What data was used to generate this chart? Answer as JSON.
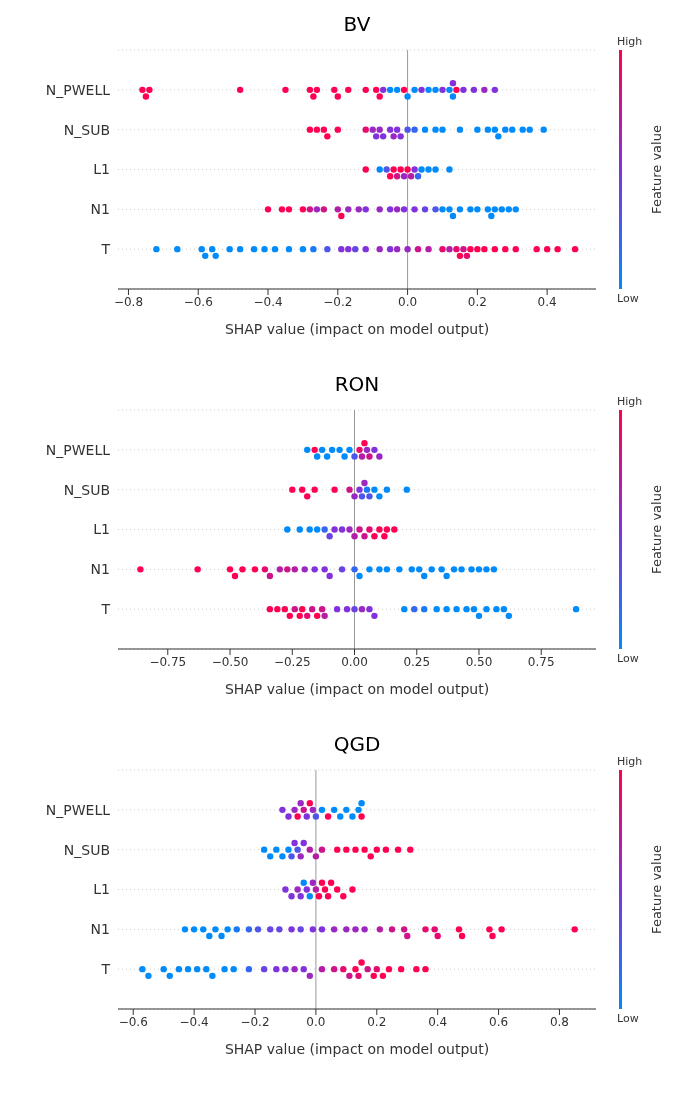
{
  "chart_data": [
    {
      "type": "scatter",
      "title": "BV",
      "orientation": "horizontal",
      "xlabel": "SHAP value (impact on model output)",
      "clabel": "Feature value",
      "annotations": [
        "High",
        "Low"
      ],
      "categories": [
        "N_PWELL",
        "N_SUB",
        "L1",
        "N1",
        "T"
      ],
      "xlim": [
        -0.83,
        0.54
      ],
      "xticks": [
        {
          "value": -0.8,
          "label": "−0.8"
        },
        {
          "value": -0.6,
          "label": "−0.6"
        },
        {
          "value": -0.4,
          "label": "−0.4"
        },
        {
          "value": -0.2,
          "label": "−0.2"
        },
        {
          "value": 0,
          "label": "0.0"
        },
        {
          "value": 0.2,
          "label": "0.2"
        },
        {
          "value": 0.4,
          "label": "0.4"
        }
      ],
      "grid": "y",
      "ref_lines": [
        {
          "axis": "x",
          "value": 0,
          "color": "#999999"
        }
      ],
      "marker": "circle",
      "series": [
        {
          "x": [
            "N_PWELL",
            "N_PWELL",
            "N_PWELL",
            "N_PWELL",
            "N_PWELL",
            "N_PWELL",
            "N_PWELL",
            "N_PWELL",
            "N_PWELL",
            "N_PWELL",
            "N_PWELL",
            "N_PWELL",
            "N_PWELL",
            "N_PWELL",
            "N_PWELL",
            "N_PWELL",
            "N_PWELL",
            "N_PWELL",
            "N_PWELL",
            "N_PWELL",
            "N_PWELL",
            "N_PWELL",
            "N_PWELL",
            "N_PWELL",
            "N_PWELL",
            "N_PWELL",
            "N_PWELL",
            "N_PWELL",
            "N_PWELL",
            "N_PWELL",
            "N_PWELL",
            "N_PWELL"
          ],
          "values": [
            -0.76,
            -0.75,
            -0.74,
            -0.48,
            -0.35,
            -0.28,
            -0.27,
            -0.26,
            -0.21,
            -0.2,
            -0.17,
            -0.12,
            -0.09,
            -0.08,
            -0.07,
            -0.05,
            -0.03,
            -0.01,
            0.0,
            0.02,
            0.04,
            0.06,
            0.08,
            0.1,
            0.12,
            0.13,
            0.13,
            0.14,
            0.16,
            0.19,
            0.22,
            0.25
          ],
          "colors": [
            "#ff0052",
            "#ff0052",
            "#ff0052",
            "#ff0052",
            "#ff0052",
            "#ff0052",
            "#ff0052",
            "#ff0052",
            "#ff0052",
            "#ff0052",
            "#ff0052",
            "#ff0052",
            "#ff0052",
            "#ff0052",
            "#8232dc",
            "#008bfb",
            "#008bfb",
            "#ff0052",
            "#008bfb",
            "#008bfb",
            "#8232dc",
            "#008bfb",
            "#008bfb",
            "#8232dc",
            "#008bfb",
            "#008bfb",
            "#8232dc",
            "#ff0052",
            "#8232dc",
            "#8232dc",
            "#9b28c0",
            "#8232dc"
          ]
        },
        {
          "x": [
            "N_SUB",
            "N_SUB",
            "N_SUB",
            "N_SUB",
            "N_SUB",
            "N_SUB",
            "N_SUB",
            "N_SUB",
            "N_SUB",
            "N_SUB",
            "N_SUB",
            "N_SUB",
            "N_SUB",
            "N_SUB",
            "N_SUB",
            "N_SUB",
            "N_SUB",
            "N_SUB",
            "N_SUB",
            "N_SUB",
            "N_SUB",
            "N_SUB",
            "N_SUB",
            "N_SUB",
            "N_SUB",
            "N_SUB",
            "N_SUB",
            "N_SUB",
            "N_SUB"
          ],
          "values": [
            -0.28,
            -0.26,
            -0.24,
            -0.23,
            -0.2,
            -0.12,
            -0.1,
            -0.09,
            -0.08,
            -0.07,
            -0.05,
            -0.04,
            -0.03,
            -0.02,
            0.0,
            0.02,
            0.05,
            0.08,
            0.1,
            0.15,
            0.2,
            0.23,
            0.25,
            0.26,
            0.28,
            0.3,
            0.33,
            0.35,
            0.39
          ],
          "colors": [
            "#ff0052",
            "#ff0052",
            "#ff0052",
            "#ff0052",
            "#ff0052",
            "#e60a6e",
            "#9b28c0",
            "#8232dc",
            "#9b28c0",
            "#8232dc",
            "#8232dc",
            "#9b28c0",
            "#8232dc",
            "#8232dc",
            "#4e56e9",
            "#3467ef",
            "#008bfb",
            "#008bfb",
            "#008bfb",
            "#008bfb",
            "#008bfb",
            "#008bfb",
            "#008bfb",
            "#008bfb",
            "#008bfb",
            "#008bfb",
            "#008bfb",
            "#008bfb",
            "#008bfb"
          ]
        },
        {
          "x": [
            "L1",
            "L1",
            "L1",
            "L1",
            "L1",
            "L1",
            "L1",
            "L1",
            "L1",
            "L1",
            "L1",
            "L1",
            "L1",
            "L1",
            "L1",
            "L1"
          ],
          "values": [
            -0.12,
            -0.08,
            -0.06,
            -0.05,
            -0.04,
            -0.03,
            -0.02,
            -0.01,
            0.0,
            0.01,
            0.02,
            0.03,
            0.04,
            0.06,
            0.08,
            0.12
          ],
          "colors": [
            "#ff0052",
            "#008bfb",
            "#4e56e9",
            "#ff0052",
            "#ff0052",
            "#cd1489",
            "#ff0052",
            "#9b28c0",
            "#ff0052",
            "#b41ea5",
            "#8232dc",
            "#3467ef",
            "#008bfb",
            "#008bfb",
            "#008bfb",
            "#008bfb"
          ]
        },
        {
          "x": [
            "N1",
            "N1",
            "N1",
            "N1",
            "N1",
            "N1",
            "N1",
            "N1",
            "N1",
            "N1",
            "N1",
            "N1",
            "N1",
            "N1",
            "N1",
            "N1",
            "N1",
            "N1",
            "N1",
            "N1",
            "N1",
            "N1",
            "N1",
            "N1",
            "N1",
            "N1",
            "N1",
            "N1",
            "N1",
            "N1",
            "N1"
          ],
          "values": [
            -0.4,
            -0.36,
            -0.34,
            -0.3,
            -0.28,
            -0.26,
            -0.24,
            -0.2,
            -0.19,
            -0.17,
            -0.14,
            -0.12,
            -0.08,
            -0.05,
            -0.03,
            -0.01,
            0.02,
            0.05,
            0.08,
            0.1,
            0.12,
            0.13,
            0.15,
            0.18,
            0.2,
            0.23,
            0.24,
            0.25,
            0.27,
            0.29,
            0.31
          ],
          "colors": [
            "#ff0052",
            "#ff0052",
            "#ff0052",
            "#ff0052",
            "#cd1489",
            "#9b28c0",
            "#cd1489",
            "#b41ea5",
            "#ff0052",
            "#9b28c0",
            "#9b28c0",
            "#8232dc",
            "#9b28c0",
            "#8232dc",
            "#9b28c0",
            "#8232dc",
            "#8232dc",
            "#6844e2",
            "#4e56e9",
            "#008bfb",
            "#008bfb",
            "#008bfb",
            "#008bfb",
            "#008bfb",
            "#008bfb",
            "#008bfb",
            "#008bfb",
            "#008bfb",
            "#008bfb",
            "#008bfb",
            "#008bfb"
          ]
        },
        {
          "x": [
            "T",
            "T",
            "T",
            "T",
            "T",
            "T",
            "T",
            "T",
            "T",
            "T",
            "T",
            "T",
            "T",
            "T",
            "T",
            "T",
            "T",
            "T",
            "T",
            "T",
            "T",
            "T",
            "T",
            "T",
            "T",
            "T",
            "T",
            "T",
            "T",
            "T",
            "T",
            "T",
            "T",
            "T",
            "T",
            "T",
            "T",
            "T",
            "T",
            "T",
            "T"
          ],
          "values": [
            -0.72,
            -0.66,
            -0.59,
            -0.58,
            -0.56,
            -0.55,
            -0.51,
            -0.48,
            -0.44,
            -0.41,
            -0.38,
            -0.34,
            -0.3,
            -0.27,
            -0.23,
            -0.19,
            -0.17,
            -0.15,
            -0.12,
            -0.08,
            -0.05,
            -0.03,
            0.0,
            0.03,
            0.06,
            0.1,
            0.12,
            0.14,
            0.15,
            0.16,
            0.17,
            0.18,
            0.2,
            0.22,
            0.25,
            0.28,
            0.31,
            0.37,
            0.4,
            0.43,
            0.48
          ],
          "colors": [
            "#008bfb",
            "#008bfb",
            "#008bfb",
            "#008bfb",
            "#008bfb",
            "#008bfb",
            "#008bfb",
            "#008bfb",
            "#008bfb",
            "#008bfb",
            "#008bfb",
            "#008bfb",
            "#008bfb",
            "#1a79f5",
            "#4e56e9",
            "#8232dc",
            "#8232dc",
            "#6844e2",
            "#8232dc",
            "#9b28c0",
            "#8232dc",
            "#9b28c0",
            "#9b28c0",
            "#cd1489",
            "#b41ea5",
            "#e60a6e",
            "#b41ea5",
            "#e60a6e",
            "#ff0052",
            "#cd1489",
            "#e60a6e",
            "#ff0052",
            "#ff0052",
            "#ff0052",
            "#ff0052",
            "#ff0052",
            "#ff0052",
            "#ff0052",
            "#ff0052",
            "#ff0052",
            "#ff0052"
          ]
        }
      ]
    },
    {
      "type": "scatter",
      "title": "RON",
      "orientation": "horizontal",
      "xlabel": "SHAP value (impact on model output)",
      "clabel": "Feature value",
      "annotations": [
        "High",
        "Low"
      ],
      "categories": [
        "N_PWELL",
        "N_SUB",
        "L1",
        "N1",
        "T"
      ],
      "xlim": [
        -0.95,
        0.97
      ],
      "xticks": [
        {
          "value": -0.75,
          "label": "−0.75"
        },
        {
          "value": -0.5,
          "label": "−0.50"
        },
        {
          "value": -0.25,
          "label": "−0.25"
        },
        {
          "value": 0,
          "label": "0.00"
        },
        {
          "value": 0.25,
          "label": "0.25"
        },
        {
          "value": 0.5,
          "label": "0.50"
        },
        {
          "value": 0.75,
          "label": "0.75"
        }
      ],
      "grid": "y",
      "ref_lines": [
        {
          "axis": "x",
          "value": 0,
          "color": "#999999"
        }
      ],
      "marker": "circle",
      "series": [
        {
          "x": [
            "N_PWELL",
            "N_PWELL",
            "N_PWELL",
            "N_PWELL",
            "N_PWELL",
            "N_PWELL",
            "N_PWELL",
            "N_PWELL",
            "N_PWELL",
            "N_PWELL",
            "N_PWELL",
            "N_PWELL",
            "N_PWELL",
            "N_PWELL",
            "N_PWELL",
            "N_PWELL",
            "N_PWELL"
          ],
          "values": [
            -0.19,
            -0.16,
            -0.15,
            -0.13,
            -0.11,
            -0.09,
            -0.06,
            -0.04,
            -0.02,
            0.0,
            0.02,
            0.03,
            0.04,
            0.05,
            0.06,
            0.08,
            0.1
          ],
          "colors": [
            "#008bfb",
            "#ff0052",
            "#008bfb",
            "#008bfb",
            "#008bfb",
            "#008bfb",
            "#008bfb",
            "#008bfb",
            "#008bfb",
            "#4e56e9",
            "#e60a6e",
            "#b41ea5",
            "#ff0052",
            "#9b28c0",
            "#cd1489",
            "#8232dc",
            "#9b28c0"
          ]
        },
        {
          "x": [
            "N_SUB",
            "N_SUB",
            "N_SUB",
            "N_SUB",
            "N_SUB",
            "N_SUB",
            "N_SUB",
            "N_SUB",
            "N_SUB",
            "N_SUB",
            "N_SUB",
            "N_SUB",
            "N_SUB",
            "N_SUB",
            "N_SUB",
            "N_SUB"
          ],
          "values": [
            -0.25,
            -0.21,
            -0.19,
            -0.16,
            -0.08,
            -0.02,
            0.0,
            0.02,
            0.03,
            0.04,
            0.05,
            0.06,
            0.08,
            0.1,
            0.13,
            0.21
          ],
          "colors": [
            "#ff0052",
            "#ff0052",
            "#ff0052",
            "#ff0052",
            "#ff0052",
            "#cd1489",
            "#9b28c0",
            "#8232dc",
            "#4e56e9",
            "#9b28c0",
            "#1a79f5",
            "#4e56e9",
            "#008bfb",
            "#008bfb",
            "#008bfb",
            "#008bfb"
          ]
        },
        {
          "x": [
            "L1",
            "L1",
            "L1",
            "L1",
            "L1",
            "L1",
            "L1",
            "L1",
            "L1",
            "L1",
            "L1",
            "L1",
            "L1",
            "L1",
            "L1",
            "L1",
            "L1",
            "L1"
          ],
          "values": [
            -0.27,
            -0.22,
            -0.18,
            -0.15,
            -0.12,
            -0.1,
            -0.08,
            -0.05,
            -0.02,
            0.0,
            0.02,
            0.04,
            0.06,
            0.08,
            0.1,
            0.12,
            0.13,
            0.16
          ],
          "colors": [
            "#008bfb",
            "#008bfb",
            "#008bfb",
            "#008bfb",
            "#3467ef",
            "#6844e2",
            "#8232dc",
            "#8232dc",
            "#9b28c0",
            "#b41ea5",
            "#cd1489",
            "#cd1489",
            "#e60a6e",
            "#ff0052",
            "#ff0052",
            "#ff0052",
            "#ff0052",
            "#ff0052"
          ]
        },
        {
          "x": [
            "N1",
            "N1",
            "N1",
            "N1",
            "N1",
            "N1",
            "N1",
            "N1",
            "N1",
            "N1",
            "N1",
            "N1",
            "N1",
            "N1",
            "N1",
            "N1",
            "N1",
            "N1",
            "N1",
            "N1",
            "N1",
            "N1",
            "N1",
            "N1",
            "N1",
            "N1",
            "N1",
            "N1",
            "N1",
            "N1",
            "N1",
            "N1",
            "N1",
            "N1"
          ],
          "values": [
            -0.86,
            -0.63,
            -0.5,
            -0.48,
            -0.45,
            -0.4,
            -0.36,
            -0.34,
            -0.3,
            -0.27,
            -0.24,
            -0.2,
            -0.16,
            -0.12,
            -0.1,
            -0.05,
            0.0,
            0.02,
            0.06,
            0.1,
            0.13,
            0.18,
            0.23,
            0.26,
            0.28,
            0.31,
            0.35,
            0.37,
            0.4,
            0.43,
            0.47,
            0.5,
            0.53,
            0.56
          ],
          "colors": [
            "#ff0052",
            "#ff0052",
            "#ff0052",
            "#ff0052",
            "#ff0052",
            "#ff0052",
            "#e60a6e",
            "#cd1489",
            "#b41ea5",
            "#cd1489",
            "#b41ea5",
            "#9b28c0",
            "#8232dc",
            "#8232dc",
            "#8232dc",
            "#6844e2",
            "#3467ef",
            "#008bfb",
            "#008bfb",
            "#008bfb",
            "#008bfb",
            "#008bfb",
            "#008bfb",
            "#008bfb",
            "#008bfb",
            "#008bfb",
            "#008bfb",
            "#008bfb",
            "#008bfb",
            "#008bfb",
            "#008bfb",
            "#008bfb",
            "#008bfb",
            "#008bfb"
          ]
        },
        {
          "x": [
            "T",
            "T",
            "T",
            "T",
            "T",
            "T",
            "T",
            "T",
            "T",
            "T",
            "T",
            "T",
            "T",
            "T",
            "T",
            "T",
            "T",
            "T",
            "T",
            "T",
            "T",
            "T",
            "T",
            "T",
            "T",
            "T",
            "T",
            "T",
            "T",
            "T",
            "T",
            "T"
          ],
          "values": [
            -0.34,
            -0.31,
            -0.28,
            -0.26,
            -0.24,
            -0.22,
            -0.21,
            -0.19,
            -0.17,
            -0.15,
            -0.13,
            -0.12,
            -0.07,
            -0.03,
            0.0,
            0.03,
            0.06,
            0.08,
            0.2,
            0.24,
            0.28,
            0.33,
            0.37,
            0.41,
            0.45,
            0.48,
            0.5,
            0.53,
            0.57,
            0.6,
            0.62,
            0.89
          ],
          "colors": [
            "#ff0052",
            "#ff0052",
            "#ff0052",
            "#ff0052",
            "#cd1489",
            "#ff0052",
            "#ff0052",
            "#e60a6e",
            "#cd1489",
            "#ff0052",
            "#cd1489",
            "#b41ea5",
            "#8232dc",
            "#8232dc",
            "#6844e2",
            "#9b28c0",
            "#8232dc",
            "#8232dc",
            "#008bfb",
            "#3467ef",
            "#1a79f5",
            "#008bfb",
            "#008bfb",
            "#008bfb",
            "#008bfb",
            "#008bfb",
            "#008bfb",
            "#008bfb",
            "#008bfb",
            "#008bfb",
            "#008bfb",
            "#008bfb"
          ]
        }
      ]
    },
    {
      "type": "scatter",
      "title": "QGD",
      "orientation": "horizontal",
      "xlabel": "SHAP value (impact on model output)",
      "clabel": "Feature value",
      "annotations": [
        "High",
        "Low"
      ],
      "categories": [
        "N_PWELL",
        "N_SUB",
        "L1",
        "N1",
        "T"
      ],
      "xlim": [
        -0.65,
        0.92
      ],
      "xticks": [
        {
          "value": -0.6,
          "label": "−0.6"
        },
        {
          "value": -0.4,
          "label": "−0.4"
        },
        {
          "value": -0.2,
          "label": "−0.2"
        },
        {
          "value": 0,
          "label": "0.0"
        },
        {
          "value": 0.2,
          "label": "0.2"
        },
        {
          "value": 0.4,
          "label": "0.4"
        },
        {
          "value": 0.6,
          "label": "0.6"
        },
        {
          "value": 0.8,
          "label": "0.8"
        }
      ],
      "grid": "y",
      "ref_lines": [
        {
          "axis": "x",
          "value": 0,
          "color": "#999999"
        }
      ],
      "marker": "circle",
      "series": [
        {
          "x": [
            "N_PWELL",
            "N_PWELL",
            "N_PWELL",
            "N_PWELL",
            "N_PWELL",
            "N_PWELL",
            "N_PWELL",
            "N_PWELL",
            "N_PWELL",
            "N_PWELL",
            "N_PWELL",
            "N_PWELL",
            "N_PWELL",
            "N_PWELL",
            "N_PWELL",
            "N_PWELL",
            "N_PWELL",
            "N_PWELL",
            "N_PWELL"
          ],
          "values": [
            -0.11,
            -0.09,
            -0.07,
            -0.06,
            -0.05,
            -0.04,
            -0.03,
            -0.02,
            -0.01,
            0.0,
            0.02,
            0.04,
            0.06,
            0.08,
            0.1,
            0.12,
            0.14,
            0.15,
            0.15
          ],
          "colors": [
            "#8232dc",
            "#8232dc",
            "#9b28c0",
            "#ff0052",
            "#9b28c0",
            "#cd1489",
            "#8232dc",
            "#ff0052",
            "#9b28c0",
            "#4e56e9",
            "#008bfb",
            "#ff0052",
            "#008bfb",
            "#008bfb",
            "#008bfb",
            "#008bfb",
            "#008bfb",
            "#ff0052",
            "#008bfb"
          ]
        },
        {
          "x": [
            "N_SUB",
            "N_SUB",
            "N_SUB",
            "N_SUB",
            "N_SUB",
            "N_SUB",
            "N_SUB",
            "N_SUB",
            "N_SUB",
            "N_SUB",
            "N_SUB",
            "N_SUB",
            "N_SUB",
            "N_SUB",
            "N_SUB",
            "N_SUB",
            "N_SUB",
            "N_SUB",
            "N_SUB",
            "N_SUB",
            "N_SUB",
            "N_SUB"
          ],
          "values": [
            -0.17,
            -0.15,
            -0.13,
            -0.11,
            -0.09,
            -0.08,
            -0.07,
            -0.06,
            -0.05,
            -0.04,
            -0.02,
            0.0,
            0.02,
            0.07,
            0.1,
            0.13,
            0.16,
            0.18,
            0.2,
            0.23,
            0.27,
            0.31
          ],
          "colors": [
            "#008bfb",
            "#008bfb",
            "#008bfb",
            "#008bfb",
            "#008bfb",
            "#4e56e9",
            "#8232dc",
            "#4e56e9",
            "#9b28c0",
            "#8232dc",
            "#b41ea5",
            "#b41ea5",
            "#cd1489",
            "#ff0052",
            "#ff0052",
            "#ff0052",
            "#ff0052",
            "#ff0052",
            "#ff0052",
            "#ff0052",
            "#ff0052",
            "#ff0052"
          ]
        },
        {
          "x": [
            "L1",
            "L1",
            "L1",
            "L1",
            "L1",
            "L1",
            "L1",
            "L1",
            "L1",
            "L1",
            "L1",
            "L1",
            "L1",
            "L1",
            "L1",
            "L1",
            "L1"
          ],
          "values": [
            -0.1,
            -0.08,
            -0.06,
            -0.05,
            -0.04,
            -0.03,
            -0.02,
            -0.01,
            0.0,
            0.01,
            0.02,
            0.03,
            0.04,
            0.05,
            0.07,
            0.09,
            0.12
          ],
          "colors": [
            "#8232dc",
            "#8232dc",
            "#9b28c0",
            "#8232dc",
            "#008bfb",
            "#8232dc",
            "#008bfb",
            "#9b28c0",
            "#b41ea5",
            "#ff0052",
            "#ff0052",
            "#ff0052",
            "#ff0052",
            "#ff0052",
            "#ff0052",
            "#ff0052",
            "#ff0052"
          ]
        },
        {
          "x": [
            "N1",
            "N1",
            "N1",
            "N1",
            "N1",
            "N1",
            "N1",
            "N1",
            "N1",
            "N1",
            "N1",
            "N1",
            "N1",
            "N1",
            "N1",
            "N1",
            "N1",
            "N1",
            "N1",
            "N1",
            "N1",
            "N1",
            "N1",
            "N1",
            "N1",
            "N1",
            "N1",
            "N1",
            "N1",
            "N1",
            "N1",
            "N1",
            "N1"
          ],
          "values": [
            -0.43,
            -0.4,
            -0.37,
            -0.35,
            -0.33,
            -0.31,
            -0.29,
            -0.26,
            -0.22,
            -0.19,
            -0.15,
            -0.12,
            -0.08,
            -0.05,
            -0.01,
            0.02,
            0.06,
            0.1,
            0.13,
            0.16,
            0.21,
            0.25,
            0.29,
            0.3,
            0.36,
            0.39,
            0.4,
            0.47,
            0.48,
            0.57,
            0.58,
            0.61,
            0.85
          ],
          "colors": [
            "#008bfb",
            "#008bfb",
            "#008bfb",
            "#008bfb",
            "#008bfb",
            "#008bfb",
            "#008bfb",
            "#1a79f5",
            "#3467ef",
            "#4e56e9",
            "#6844e2",
            "#6844e2",
            "#8232dc",
            "#6844e2",
            "#8232dc",
            "#8232dc",
            "#9b28c0",
            "#9b28c0",
            "#9b28c0",
            "#9b28c0",
            "#b41ea5",
            "#cd1489",
            "#cd1489",
            "#cd1489",
            "#e60a6e",
            "#e60a6e",
            "#e60a6e",
            "#ff0052",
            "#ff0052",
            "#ff0052",
            "#ff0052",
            "#ff0052",
            "#ff0052"
          ]
        },
        {
          "x": [
            "T",
            "T",
            "T",
            "T",
            "T",
            "T",
            "T",
            "T",
            "T",
            "T",
            "T",
            "T",
            "T",
            "T",
            "T",
            "T",
            "T",
            "T",
            "T",
            "T",
            "T",
            "T",
            "T",
            "T",
            "T",
            "T",
            "T",
            "T",
            "T",
            "T",
            "T",
            "T",
            "T"
          ],
          "values": [
            -0.57,
            -0.55,
            -0.5,
            -0.48,
            -0.45,
            -0.42,
            -0.39,
            -0.36,
            -0.34,
            -0.3,
            -0.27,
            -0.22,
            -0.17,
            -0.13,
            -0.1,
            -0.07,
            -0.04,
            -0.02,
            0.02,
            0.06,
            0.09,
            0.11,
            0.13,
            0.14,
            0.15,
            0.17,
            0.19,
            0.2,
            0.22,
            0.24,
            0.28,
            0.33,
            0.36
          ],
          "colors": [
            "#008bfb",
            "#008bfb",
            "#008bfb",
            "#008bfb",
            "#008bfb",
            "#008bfb",
            "#008bfb",
            "#008bfb",
            "#008bfb",
            "#008bfb",
            "#008bfb",
            "#3467ef",
            "#6844e2",
            "#8232dc",
            "#8232dc",
            "#9b28c0",
            "#8232dc",
            "#9b28c0",
            "#b41ea5",
            "#cd1489",
            "#e60a6e",
            "#cd1489",
            "#ff0052",
            "#e60a6e",
            "#ff0052",
            "#cd1489",
            "#ff0052",
            "#e60a6e",
            "#ff0052",
            "#ff0052",
            "#ff0052",
            "#ff0052",
            "#ff0052"
          ]
        }
      ]
    }
  ]
}
